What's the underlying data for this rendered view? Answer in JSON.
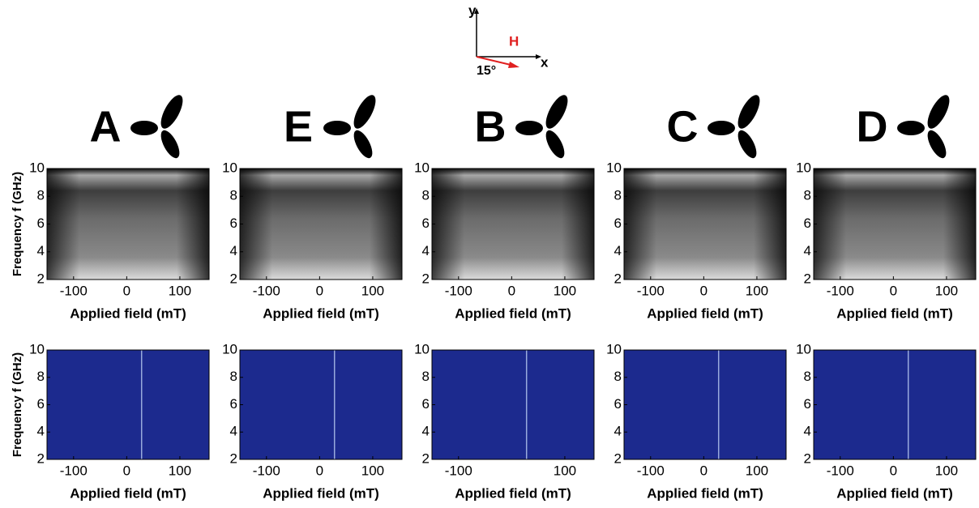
{
  "coordinate_diagram": {
    "y_label": "y",
    "x_label": "x",
    "field_label": "H",
    "angle_label": "15°"
  },
  "chart_data": [
    {
      "type": "heatmap",
      "colormap": "gray",
      "title": "A",
      "xlabel": "Applied field (mT)",
      "ylabel": "Frequency f (GHz)",
      "xlim": [
        -150,
        155
      ],
      "ylim": [
        2,
        10
      ],
      "xticks": [
        -100,
        0,
        100
      ],
      "yticks": [
        2,
        4,
        6,
        8,
        10
      ]
    },
    {
      "type": "heatmap",
      "colormap": "gray",
      "title": "E",
      "xlabel": "Applied field (mT)",
      "xlim": [
        -150,
        155
      ],
      "ylim": [
        2,
        10
      ],
      "xticks": [
        -100,
        0,
        100
      ],
      "yticks": [
        2,
        4,
        6,
        8,
        10
      ]
    },
    {
      "type": "heatmap",
      "colormap": "gray",
      "title": "B",
      "xlabel": "Applied field (mT)",
      "xlim": [
        -150,
        155
      ],
      "ylim": [
        2,
        10
      ],
      "xticks": [
        -100,
        0,
        100
      ],
      "yticks": [
        2,
        4,
        6,
        8,
        10
      ]
    },
    {
      "type": "heatmap",
      "colormap": "gray",
      "title": "C",
      "xlabel": "Applied field (mT)",
      "xlim": [
        -150,
        155
      ],
      "ylim": [
        2,
        10
      ],
      "xticks": [
        -100,
        0,
        100
      ],
      "yticks": [
        2,
        4,
        6,
        8,
        10
      ]
    },
    {
      "type": "heatmap",
      "colormap": "gray",
      "title": "D",
      "xlabel": "Applied field (mT)",
      "xlim": [
        -150,
        155
      ],
      "ylim": [
        2,
        10
      ],
      "xticks": [
        -100,
        0,
        100
      ],
      "yticks": [
        2,
        4,
        6,
        8,
        10
      ]
    },
    {
      "type": "heatmap",
      "colormap": "jet",
      "xlabel": "Applied field (mT)",
      "ylabel": "Frequency f (GHz)",
      "xlim": [
        -150,
        155
      ],
      "ylim": [
        2,
        10
      ],
      "xticks": [
        -100,
        0,
        100
      ],
      "yticks": [
        2,
        4,
        6,
        8,
        10
      ]
    },
    {
      "type": "heatmap",
      "colormap": "jet",
      "xlabel": "Applied field (mT)",
      "xlim": [
        -150,
        155
      ],
      "ylim": [
        2,
        10
      ],
      "xticks": [
        -100,
        0,
        100
      ],
      "yticks": [
        2,
        4,
        6,
        8,
        10
      ]
    },
    {
      "type": "heatmap",
      "colormap": "jet",
      "xlabel": "Applied field (mT)",
      "xlim": [
        -150,
        155
      ],
      "ylim": [
        2,
        10
      ],
      "xticks": [
        -100,
        100
      ],
      "yticks": [
        2,
        4,
        6,
        8,
        10
      ]
    },
    {
      "type": "heatmap",
      "colormap": "jet",
      "xlabel": "Applied field (mT)",
      "xlim": [
        -150,
        155
      ],
      "ylim": [
        2,
        10
      ],
      "xticks": [
        -100,
        0,
        100
      ],
      "yticks": [
        2,
        4,
        6,
        8,
        10
      ]
    },
    {
      "type": "heatmap",
      "colormap": "jet",
      "xlabel": "Applied field (mT)",
      "xlim": [
        -150,
        155
      ],
      "ylim": [
        2,
        10
      ],
      "xticks": [
        -100,
        0,
        100
      ],
      "yticks": [
        2,
        4,
        6,
        8,
        10
      ]
    }
  ]
}
